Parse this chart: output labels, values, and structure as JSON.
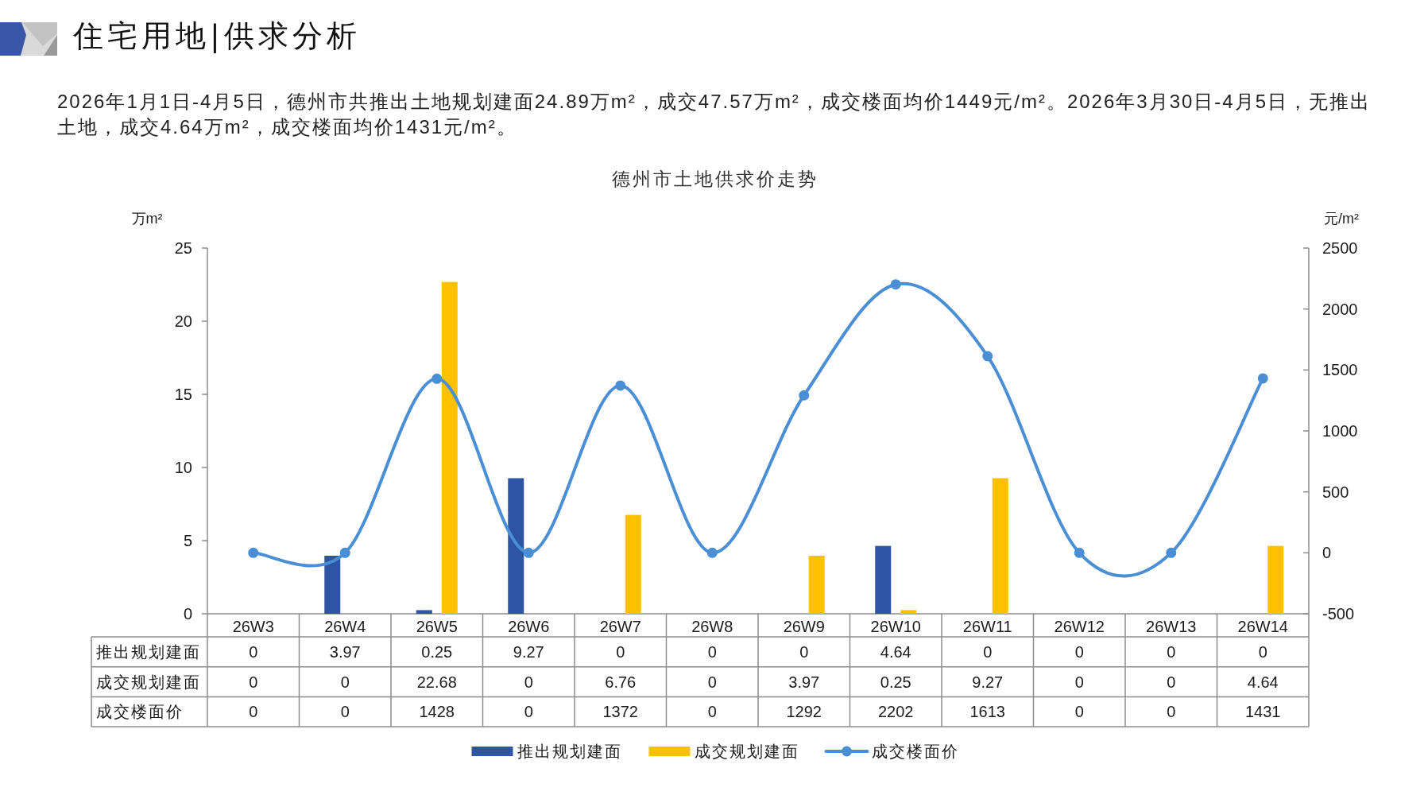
{
  "chart_data": {
    "type": "bar",
    "title": "住宅用地|供求分析",
    "subtitle": "德州市土地供求价走势",
    "annotations": [
      "2026年1月1日-4月5日，德州市共推出土地规划建面24.89万m²，成交47.57万m²，成交楼面均价1449元/m²。2026年3月30日-4月5日，无推出土地，成交4.64万m²，成交楼面均价1431元/m²。"
    ],
    "ylabel": "万m²",
    "y2label": "元/m²",
    "categories": [
      "26W3",
      "26W4",
      "26W5",
      "26W6",
      "26W7",
      "26W8",
      "26W9",
      "26W10",
      "26W11",
      "26W12",
      "26W13",
      "26W14"
    ],
    "series": [
      {
        "name": "推出规划建面",
        "color": "#2e55a5",
        "values": [
          0,
          3.97,
          0.25,
          9.27,
          0,
          0,
          0,
          4.64,
          0,
          0,
          0,
          0
        ]
      },
      {
        "name": "成交规划建面",
        "color": "#ffc000",
        "values": [
          0,
          0,
          22.68,
          0,
          6.76,
          0,
          3.97,
          0.25,
          9.27,
          0,
          0,
          4.64
        ]
      },
      {
        "name": "成交楼面价",
        "type": "line",
        "axis": "y2",
        "color": "#4a8fd5",
        "values": [
          0,
          0,
          1428,
          0,
          1372,
          0,
          1292,
          2202,
          1613,
          0,
          0,
          1431
        ]
      }
    ],
    "ylim": [
      0,
      25
    ],
    "yticks": [
      0,
      5,
      10,
      15,
      20,
      25
    ],
    "y2lim": [
      -500,
      2500
    ],
    "y2ticks": [
      -500,
      0,
      500,
      1000,
      1500,
      2000,
      2500
    ],
    "marker": "circle",
    "line_style": "solid",
    "legend": "bottom",
    "data_labels": true
  }
}
